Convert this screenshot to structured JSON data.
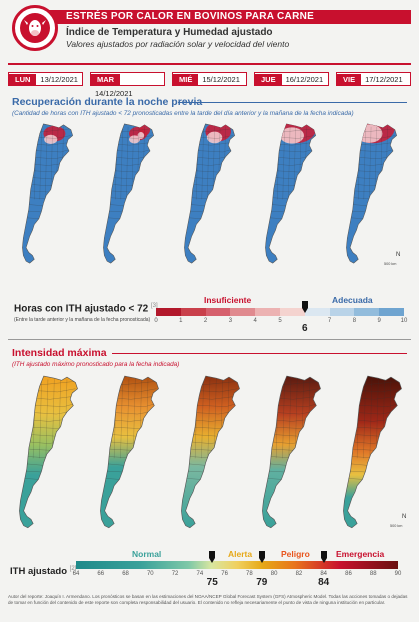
{
  "header": {
    "banner": "ESTRÉS POR CALOR EN BOVINOS PARA CARNE",
    "title": "Índice de Temperatura y Humedad ajustado",
    "subtitle": "Valores ajustados por radiación solar y velocidad del viento"
  },
  "dates": [
    {
      "day": "LUN",
      "date": "13/12/2021"
    },
    {
      "day": "MAR",
      "date": "14/12/2021"
    },
    {
      "day": "MIÉ",
      "date": "15/12/2021"
    },
    {
      "day": "JUE",
      "date": "16/12/2021"
    },
    {
      "day": "VIE",
      "date": "17/12/2021"
    }
  ],
  "section1": {
    "title": "Recuperación durante la noche previa",
    "subtitle": "(Cantidad de horas con ITH ajustado < 72 pronosticadas entre la tarde del día anterior y la mañana de la fecha indicada)",
    "legend_title": "Horas con ITH ajustado < 72",
    "legend_ref": "[3]",
    "legend_note": "(Entre la tarde anterior y la mañana de la fecha pronosticada)",
    "label_bad": "Insuficiente",
    "label_good": "Adecuada",
    "ticks": [
      "0",
      "1",
      "2",
      "3",
      "4",
      "5",
      "",
      "7",
      "8",
      "9",
      "10"
    ],
    "threshold": "6",
    "colors": [
      "#b2182b",
      "#c9404b",
      "#d6606d",
      "#e08a8f",
      "#ecb2b2",
      "#f4d3cf",
      "#dbe7f1",
      "#b9d3e8",
      "#92bcdc",
      "#6fa4d0"
    ]
  },
  "section2": {
    "title": "Intensidad máxima",
    "subtitle": "(ITH ajustado máximo pronosticado para la fecha indicada)",
    "legend_title": "ITH ajustado",
    "legend_ref": "[2]",
    "categories": [
      {
        "name": "Normal",
        "color": "#3aa19a"
      },
      {
        "name": "Alerta",
        "color": "#e6a817"
      },
      {
        "name": "Peligro",
        "color": "#e8541c"
      },
      {
        "name": "Emergencia",
        "color": "#c8102e"
      }
    ],
    "ticks": [
      "64",
      "66",
      "68",
      "70",
      "72",
      "74",
      "76",
      "78",
      "80",
      "82",
      "84",
      "86",
      "88",
      "90"
    ],
    "thresholds": [
      "75",
      "79",
      "84"
    ]
  },
  "map_scale": "500 km",
  "map_north": "N",
  "footer": "Autor del reporte: Joaquín I. Armendano. Los pronósticos se basan en las estimaciones del NOAA/NCEP Global Forecast System (GFS) Atmospheric Model. Todas las acciones tomadas o dejadas de tomar en función del contenido de este reporte son completa responsabilidad del usuario. El contenido no refleja necesariamente el punto de vista de ninguna institución en particular."
}
